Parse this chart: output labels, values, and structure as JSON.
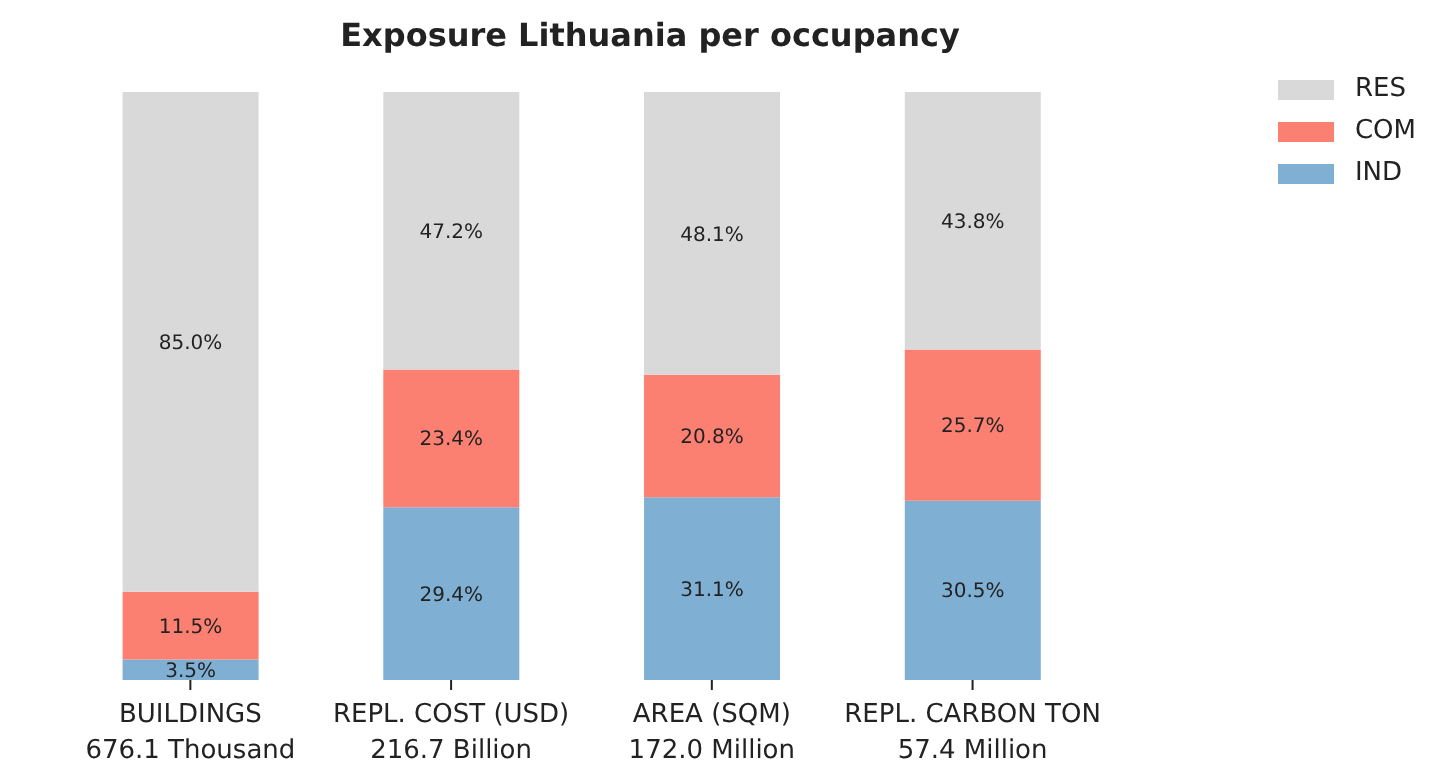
{
  "chart_data": {
    "type": "bar",
    "title": "Exposure Lithuania per occupancy",
    "stacked": true,
    "legend": "top right",
    "tick_labels": "x",
    "ylim": [
      0,
      100
    ],
    "categories": [
      "BUILDINGS\n676.1 Thousand",
      "REPL. COST (USD)\n216.7 Billion",
      "AREA (SQM)\n172.0 Million",
      "REPL. CARBON TON\n57.4 Million"
    ],
    "series": [
      {
        "name": "IND",
        "color": "#7fafd2",
        "values": [
          3.5,
          29.4,
          31.1,
          30.5
        ],
        "value_labels": [
          "3.5%",
          "29.4%",
          "31.1%",
          "30.5%"
        ]
      },
      {
        "name": "COM",
        "color": "#fb8072",
        "values": [
          11.5,
          23.4,
          20.8,
          25.7
        ],
        "value_labels": [
          "11.5%",
          "23.4%",
          "20.8%",
          "25.7%"
        ]
      },
      {
        "name": "RES",
        "color": "#d9d9d9",
        "values": [
          85.0,
          47.2,
          48.1,
          43.8
        ],
        "value_labels": [
          "85.0%",
          "47.2%",
          "48.1%",
          "43.8%"
        ]
      }
    ]
  }
}
